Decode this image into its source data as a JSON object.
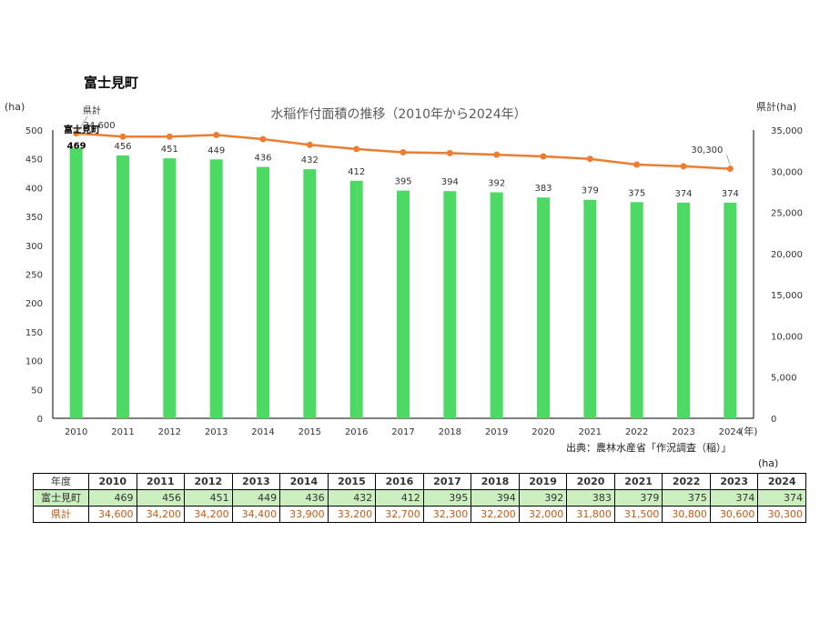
{
  "page": {
    "title": "富士見町"
  },
  "chart_data": {
    "type": "bar+line",
    "title": "水稲作付面積の推移（2010年から2024年）",
    "categories": [
      "2010",
      "2011",
      "2012",
      "2013",
      "2014",
      "2015",
      "2016",
      "2017",
      "2018",
      "2019",
      "2020",
      "2021",
      "2022",
      "2023",
      "2024"
    ],
    "series": [
      {
        "name": "富士見町",
        "type": "bar",
        "axis": "left",
        "color": "#4cd964",
        "values": [
          469,
          456,
          451,
          449,
          436,
          432,
          412,
          395,
          394,
          392,
          383,
          379,
          375,
          374,
          374
        ]
      },
      {
        "name": "県計",
        "type": "line",
        "axis": "right",
        "color": "#ed7d31",
        "values": [
          34600,
          34200,
          34200,
          34400,
          33900,
          33200,
          32700,
          32300,
          32200,
          32000,
          31800,
          31500,
          30800,
          30600,
          30300
        ]
      }
    ],
    "y_left": {
      "unit": "(ha)",
      "min": 0,
      "max": 500,
      "step": 50,
      "ticks": [
        "0",
        "50",
        "100",
        "150",
        "200",
        "250",
        "300",
        "350",
        "400",
        "450",
        "500"
      ]
    },
    "y_right": {
      "unit": "県計(ha)",
      "min": 0,
      "max": 35000,
      "step": 5000,
      "ticks": [
        "0",
        "5,000",
        "10,000",
        "15,000",
        "20,000",
        "25,000",
        "30,000",
        "35,000"
      ]
    },
    "x_unit": "(年)",
    "bar_labels": [
      "469",
      "456",
      "451",
      "449",
      "436",
      "432",
      "412",
      "395",
      "394",
      "392",
      "383",
      "379",
      "375",
      "374",
      "374"
    ],
    "line_label_first": "34,600",
    "line_label_last": "30,300",
    "annotation_bar_series": "富士見町",
    "annotation_line_series": "県計",
    "grid": false
  },
  "source": "出典：農林水産省「作況調査（稲）」",
  "table": {
    "unit": "(ha)",
    "header_label": "年度",
    "years": [
      "2010",
      "2011",
      "2012",
      "2013",
      "2014",
      "2015",
      "2016",
      "2017",
      "2018",
      "2019",
      "2020",
      "2021",
      "2022",
      "2023",
      "2024"
    ],
    "rows": [
      {
        "label": "富士見町",
        "values": [
          "469",
          "456",
          "451",
          "449",
          "436",
          "432",
          "412",
          "395",
          "394",
          "392",
          "383",
          "379",
          "375",
          "374",
          "374"
        ]
      },
      {
        "label": "県計",
        "values": [
          "34,600",
          "34,200",
          "34,200",
          "34,400",
          "33,900",
          "33,200",
          "32,700",
          "32,300",
          "32,200",
          "32,000",
          "31,800",
          "31,500",
          "30,800",
          "30,600",
          "30,300"
        ]
      }
    ]
  }
}
